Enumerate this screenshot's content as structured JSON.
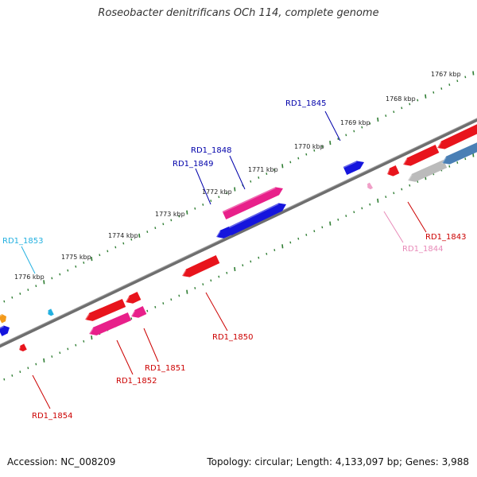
{
  "title": "Roseobacter denitrificans OCh 114, complete genome",
  "footer": {
    "accession": "Accession: NC_008209",
    "summary": "Topology: circular; Length: 4,133,097 bp; Genes: 3,988"
  },
  "colors": {
    "backbone": "#777777",
    "tick": "#2e7d32",
    "forward_gene": "#1515dd",
    "reverse_gene": "#e8141c",
    "magenta_gene": "#e8208a",
    "pink_gene": "#f0a0c8",
    "cyan_gene": "#22b0e0",
    "orange_gene": "#f39a1a",
    "steel_gene": "#4a7fb5",
    "grey_gene": "#bbbbbb"
  },
  "ticks": [
    {
      "label": "1767 kbp"
    },
    {
      "label": "1768 kbp"
    },
    {
      "label": "1769 kbp"
    },
    {
      "label": "1770 kbp"
    },
    {
      "label": "1771 kbp"
    },
    {
      "label": "1772 kbp"
    },
    {
      "label": "1773 kbp"
    },
    {
      "label": "1774 kbp"
    },
    {
      "label": "1775 kbp"
    },
    {
      "label": "1776 kbp"
    }
  ],
  "genes": [
    {
      "label": "RD1_1843",
      "color": "#cc0000"
    },
    {
      "label": "RD1_1844",
      "color": "#e88ab8"
    },
    {
      "label": "RD1_1845",
      "color": "#0000aa"
    },
    {
      "label": "RD1_1848",
      "color": "#0000aa"
    },
    {
      "label": "RD1_1849",
      "color": "#0000aa"
    },
    {
      "label": "RD1_1850",
      "color": "#cc0000"
    },
    {
      "label": "RD1_1851",
      "color": "#cc0000"
    },
    {
      "label": "RD1_1852",
      "color": "#cc0000"
    },
    {
      "label": "RD1_1853",
      "color": "#22b0e0"
    },
    {
      "label": "RD1_1854",
      "color": "#cc0000"
    }
  ]
}
